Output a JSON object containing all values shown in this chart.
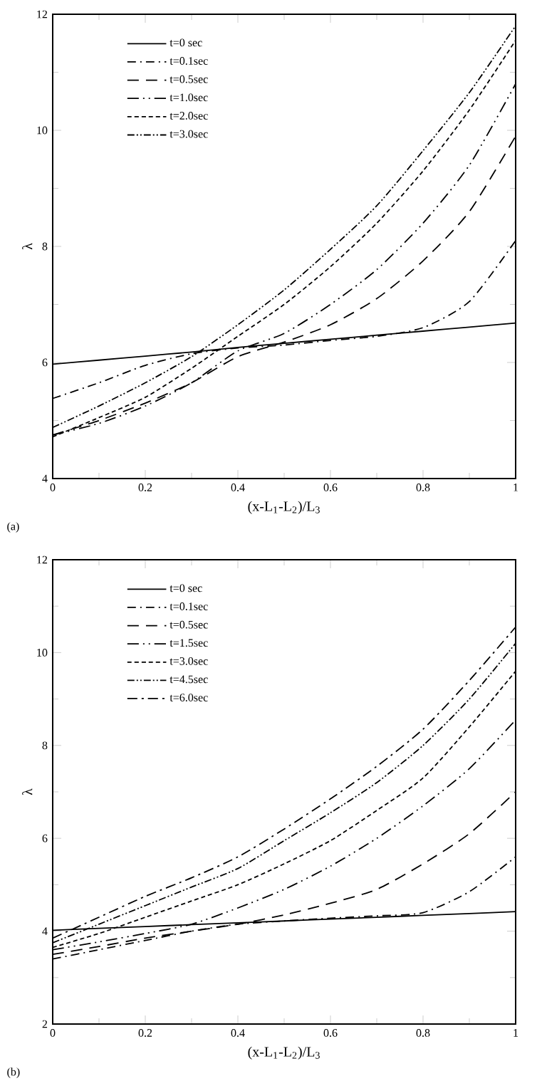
{
  "chart_data": [
    {
      "type": "line",
      "annotations": [
        "(a)"
      ],
      "xlabel": "(x-L$_{1}$-L$_{2}$)/L$_{3}$",
      "ylabel": "λ",
      "xlim": [
        0,
        1
      ],
      "ylim": [
        4,
        12
      ],
      "xticks": [
        0,
        0.2,
        0.4,
        0.6,
        0.8,
        1
      ],
      "yticks": [
        4,
        6,
        8,
        10,
        12
      ],
      "legend": "top left",
      "x": [
        0,
        0.1,
        0.2,
        0.3,
        0.4,
        0.5,
        0.6,
        0.7,
        0.8,
        0.9,
        1
      ],
      "series": [
        {
          "name": "t=0 sec",
          "color": "#000000",
          "line_style": "solid",
          "values": [
            5.97,
            6.04,
            6.11,
            6.18,
            6.26,
            6.33,
            6.4,
            6.47,
            6.54,
            6.61,
            6.68
          ]
        },
        {
          "name": "t=0.1sec",
          "color": "#000000",
          "line_style": "dashdot",
          "values": [
            5.38,
            5.65,
            5.95,
            6.15,
            6.25,
            6.3,
            6.38,
            6.45,
            6.6,
            7.05,
            8.1
          ]
        },
        {
          "name": "t=0.5sec",
          "color": "#000000",
          "line_style": "longdash",
          "values": [
            4.75,
            5.0,
            5.3,
            5.65,
            6.1,
            6.35,
            6.65,
            7.1,
            7.75,
            8.6,
            9.9
          ]
        },
        {
          "name": "t=1.0sec",
          "color": "#000000",
          "line_style": "longdashdotdot",
          "values": [
            4.75,
            4.95,
            5.25,
            5.65,
            6.2,
            6.5,
            7.0,
            7.6,
            8.4,
            9.4,
            10.8
          ]
        },
        {
          "name": "t=2.0sec",
          "color": "#000000",
          "line_style": "dashed",
          "values": [
            4.72,
            5.05,
            5.4,
            5.9,
            6.45,
            7.0,
            7.65,
            8.4,
            9.3,
            10.35,
            11.55
          ]
        },
        {
          "name": "t=3.0sec",
          "color": "#000000",
          "line_style": "dashdotdot",
          "values": [
            4.88,
            5.25,
            5.65,
            6.1,
            6.65,
            7.25,
            7.95,
            8.7,
            9.65,
            10.65,
            11.8
          ]
        }
      ]
    },
    {
      "type": "line",
      "annotations": [
        "(b)"
      ],
      "xlabel": "(x-L$_{1}$-L$_{2}$)/L$_{3}$",
      "ylabel": "λ",
      "xlim": [
        0,
        1
      ],
      "ylim": [
        2,
        12
      ],
      "xticks": [
        0,
        0.2,
        0.4,
        0.6,
        0.8,
        1
      ],
      "yticks": [
        2,
        4,
        6,
        8,
        10,
        12
      ],
      "legend": "top left",
      "x": [
        0,
        0.1,
        0.2,
        0.3,
        0.4,
        0.5,
        0.6,
        0.7,
        0.8,
        0.9,
        1
      ],
      "series": [
        {
          "name": "t=0 sec",
          "color": "#000000",
          "line_style": "solid",
          "values": [
            4.02,
            4.06,
            4.1,
            4.14,
            4.18,
            4.22,
            4.26,
            4.3,
            4.34,
            4.38,
            4.42
          ]
        },
        {
          "name": "t=0.1sec",
          "color": "#000000",
          "line_style": "dashdot",
          "values": [
            3.4,
            3.6,
            3.8,
            4.0,
            4.15,
            4.22,
            4.28,
            4.33,
            4.4,
            4.85,
            5.6
          ]
        },
        {
          "name": "t=0.5sec",
          "color": "#000000",
          "line_style": "longdash",
          "values": [
            3.5,
            3.67,
            3.85,
            4.0,
            4.15,
            4.35,
            4.6,
            4.9,
            5.45,
            6.1,
            7.0
          ]
        },
        {
          "name": "t=1.5sec",
          "color": "#000000",
          "line_style": "longdashdotdot",
          "values": [
            3.6,
            3.77,
            3.95,
            4.15,
            4.5,
            4.9,
            5.4,
            6.0,
            6.7,
            7.5,
            8.55
          ]
        },
        {
          "name": "t=3.0sec",
          "color": "#000000",
          "line_style": "dashed",
          "values": [
            3.65,
            3.95,
            4.3,
            4.65,
            5.0,
            5.45,
            5.95,
            6.6,
            7.3,
            8.4,
            9.6
          ]
        },
        {
          "name": "t=4.5sec",
          "color": "#000000",
          "line_style": "dashdotdot",
          "values": [
            3.75,
            4.15,
            4.55,
            4.95,
            5.35,
            5.95,
            6.55,
            7.2,
            8.0,
            9.0,
            10.2
          ]
        },
        {
          "name": "t=6.0sec",
          "color": "#000000",
          "line_style": "dashdot2",
          "values": [
            3.85,
            4.3,
            4.75,
            5.15,
            5.6,
            6.2,
            6.85,
            7.55,
            8.35,
            9.4,
            10.55
          ]
        }
      ]
    }
  ]
}
